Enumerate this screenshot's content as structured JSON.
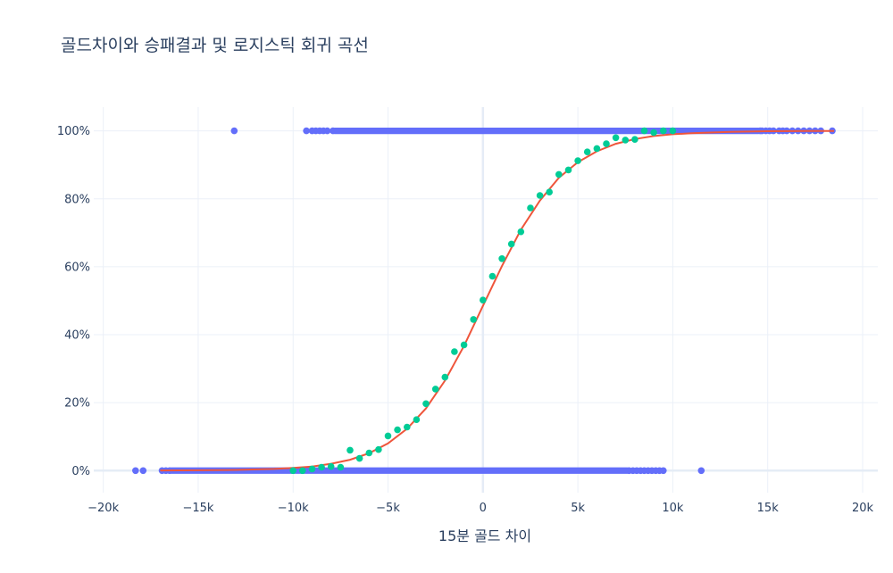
{
  "chart_data": {
    "type": "scatter",
    "title": "골드차이와 승패결과 및 로지스틱 회귀 곡선",
    "xlabel": "15분 골드 차이",
    "ylabel": "",
    "xlim": [
      -20500,
      20800
    ],
    "ylim": [
      -0.065,
      1.07
    ],
    "x_ticks": [
      -20000,
      -15000,
      -10000,
      -5000,
      0,
      5000,
      10000,
      15000,
      20000
    ],
    "x_tick_labels": [
      "−20k",
      "−15k",
      "−10k",
      "−5k",
      "0",
      "5k",
      "10k",
      "15k",
      "20k"
    ],
    "y_ticks": [
      0,
      0.2,
      0.4,
      0.6,
      0.8,
      1.0
    ],
    "y_tick_labels": [
      "0%",
      "20%",
      "40%",
      "60%",
      "80%",
      "100%"
    ],
    "grid": true,
    "legend": "none",
    "colors": {
      "outcomes": "#636efa",
      "binned": "#00cc96",
      "curve": "#ef553b",
      "grid": "#ebf0f8",
      "zero_line": "#e5ecf6"
    },
    "series": [
      {
        "type": "scatter",
        "role": "outcome-wins",
        "color": "#636efa",
        "dense_range": [
          -7800,
          14500
        ],
        "x": [
          -13100,
          -9300,
          -9000,
          -8800,
          -8600,
          -8400,
          -8200,
          -7900,
          14600,
          14700,
          14900,
          15100,
          15300,
          15600,
          15800,
          16000,
          16300,
          16600,
          16900,
          17200,
          17500,
          17800,
          18400
        ],
        "y": 1
      },
      {
        "type": "scatter",
        "role": "outcome-losses",
        "color": "#636efa",
        "dense_range": [
          -16400,
          7600
        ],
        "x": [
          -18300,
          -17900,
          -16900,
          -16700,
          -16500,
          7700,
          7900,
          8100,
          8300,
          8500,
          8700,
          8900,
          9100,
          9300,
          9500,
          11500
        ],
        "y": 0
      },
      {
        "type": "scatter",
        "role": "binned-win-rate",
        "color": "#00cc96",
        "x": [
          -10000,
          -9500,
          -9000,
          -8500,
          -8000,
          -7500,
          -7000,
          -6500,
          -6000,
          -5500,
          -5000,
          -4500,
          -4000,
          -3500,
          -3000,
          -2500,
          -2000,
          -1500,
          -1000,
          -500,
          0,
          500,
          1000,
          1500,
          2000,
          2500,
          3000,
          3500,
          4000,
          4500,
          5000,
          5500,
          6000,
          6500,
          7000,
          7500,
          8000,
          8500,
          9000,
          9500,
          10000
        ],
        "y": [
          0.0,
          0.0,
          0.005,
          0.01,
          0.012,
          0.01,
          0.06,
          0.036,
          0.052,
          0.062,
          0.102,
          0.12,
          0.128,
          0.15,
          0.197,
          0.24,
          0.275,
          0.35,
          0.37,
          0.445,
          0.502,
          0.572,
          0.624,
          0.667,
          0.703,
          0.773,
          0.81,
          0.82,
          0.872,
          0.885,
          0.912,
          0.938,
          0.948,
          0.962,
          0.98,
          0.973,
          0.975,
          1.0,
          0.995,
          1.0,
          1.0
        ]
      },
      {
        "type": "line",
        "role": "logistic-curve",
        "color": "#ef553b",
        "x": [
          -17000,
          -15000,
          -13000,
          -11000,
          -10000,
          -9000,
          -8000,
          -7000,
          -6000,
          -5000,
          -4000,
          -3000,
          -2000,
          -1000,
          0,
          1000,
          2000,
          3000,
          4000,
          5000,
          6000,
          7000,
          8000,
          9000,
          10000,
          11000,
          13000,
          15000,
          17000,
          18500
        ],
        "y": [
          0.0003,
          0.001,
          0.002,
          0.005,
          0.008,
          0.012,
          0.02,
          0.032,
          0.051,
          0.08,
          0.123,
          0.183,
          0.265,
          0.367,
          0.485,
          0.602,
          0.709,
          0.795,
          0.862,
          0.908,
          0.94,
          0.962,
          0.976,
          0.985,
          0.99,
          0.993,
          0.997,
          0.999,
          0.9995,
          0.9998
        ]
      }
    ]
  }
}
